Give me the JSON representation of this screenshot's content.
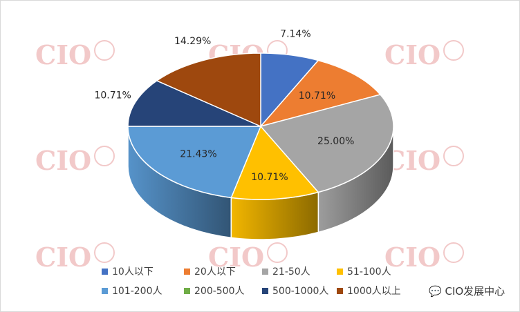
{
  "colors": {
    "10人以下": "#4472c4",
    "20人以下": "#ed7d31",
    "21-50人": "#a5a5a5",
    "51-100人": "#ffc000",
    "101-200人": "#5b9bd5",
    "200-500人": "#70ad47",
    "500-1000人": "#264478",
    "1000人以上": "#9e480e"
  },
  "watermark": {
    "logo_text": "CIO",
    "account_label": "CIO发展中心"
  },
  "chart_data": {
    "type": "pie",
    "style": "3d",
    "legend_position": "bottom",
    "title": "",
    "labels": [
      "10人以下",
      "20人以下",
      "21-50人",
      "51-100人",
      "101-200人",
      "200-500人",
      "500-1000人",
      "1000人以上"
    ],
    "values": [
      7.14,
      10.71,
      25.0,
      10.71,
      21.43,
      0,
      10.71,
      14.29
    ],
    "data_labels": [
      "7.14%",
      "10.71%",
      "25.00%",
      "10.71%",
      "21.43%",
      "",
      "10.71%",
      "14.29%"
    ]
  }
}
